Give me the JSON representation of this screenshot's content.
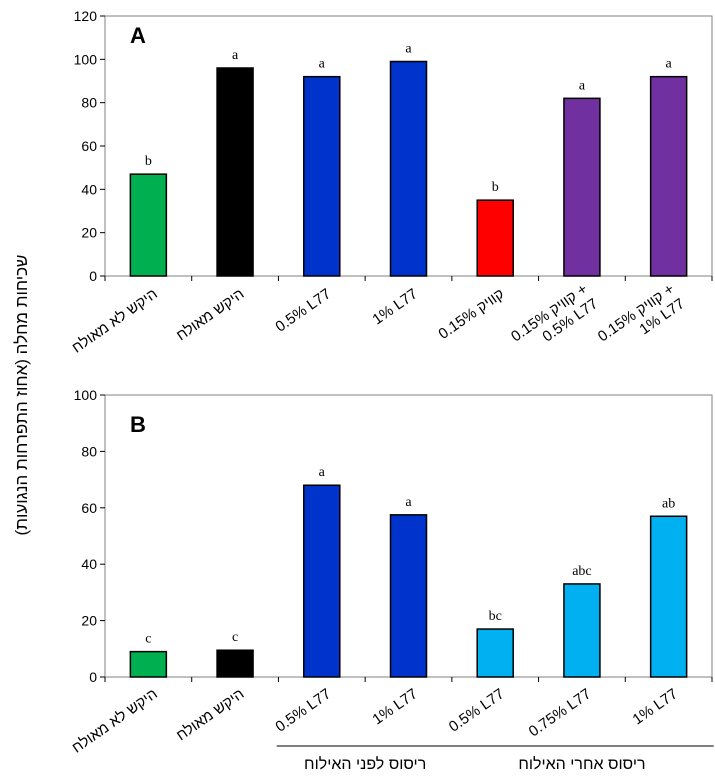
{
  "y_axis_label": "שכיחות מחלה (אחוז התפרחות הנגועות)",
  "chart_data": [
    {
      "type": "bar",
      "panel_label": "A",
      "ylim": [
        0,
        120
      ],
      "yticks": [
        0,
        20,
        40,
        60,
        80,
        100,
        120
      ],
      "categories": [
        [
          "היקש לא מאולח"
        ],
        [
          "היקש מאולח"
        ],
        [
          "0.5% L77"
        ],
        [
          "1% L77"
        ],
        [
          "0.15% קוויק"
        ],
        [
          "קוויק 0.15% +",
          "0.5% L77"
        ],
        [
          "קוויק 0.15% +",
          "1% L77"
        ]
      ],
      "values": [
        47,
        96,
        92,
        99,
        35,
        82,
        92
      ],
      "significance": [
        "b",
        "a",
        "a",
        "a",
        "b",
        "a",
        "a"
      ],
      "colors": [
        "#00B050",
        "#000000",
        "#0033CC",
        "#0033CC",
        "#FF0000",
        "#7030A0",
        "#7030A0"
      ]
    },
    {
      "type": "bar",
      "panel_label": "B",
      "ylim": [
        0,
        100
      ],
      "yticks": [
        0,
        20,
        40,
        60,
        80,
        100
      ],
      "categories": [
        [
          "היקש לא מאולח"
        ],
        [
          "היקש מאולח"
        ],
        [
          "0.5% L77"
        ],
        [
          "1% L77"
        ],
        [
          "0.5% L77"
        ],
        [
          "0.75% L77"
        ],
        [
          "1% L77"
        ]
      ],
      "values": [
        9,
        9.5,
        68,
        57.5,
        17,
        33,
        57
      ],
      "significance": [
        "c",
        "c",
        "a",
        "a",
        "bc",
        "abc",
        "ab"
      ],
      "colors": [
        "#00B050",
        "#000000",
        "#0033CC",
        "#0033CC",
        "#00B0F0",
        "#00B0F0",
        "#00B0F0"
      ],
      "groups": [
        {
          "label": "ריסוס לפני האילוח",
          "first": 2,
          "last": 3
        },
        {
          "label": "ריסוס אחרי האילוח",
          "first": 4,
          "last": 6
        }
      ]
    }
  ]
}
